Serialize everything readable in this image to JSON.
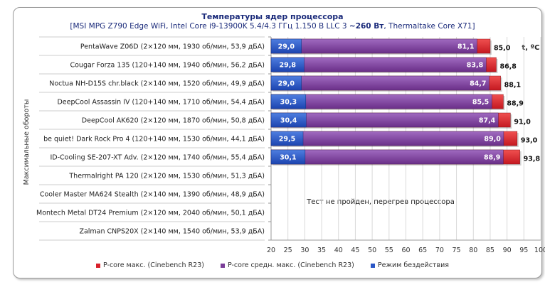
{
  "chart_data": {
    "type": "bar",
    "title": "Температуры ядер процессора",
    "subtitle_parts": [
      "[MSI MPG Z790 Edge WiFi, Intel Core i9-13900K 5.4/4.3 ГГц 1.150 В LLC 3 ",
      "~260 Вт",
      ", Thermaltake Core X71]"
    ],
    "ylabel": "Максимальные обороты",
    "unit_label": "t, ºC",
    "xlim": [
      20,
      100
    ],
    "xticks": [
      "20",
      "25",
      "30",
      "35",
      "40",
      "45",
      "50",
      "55",
      "60",
      "65",
      "70",
      "75",
      "80",
      "85",
      "90",
      "95",
      "100"
    ],
    "categories": [
      "PentaWave Z06D (2×120 мм, 1930 об/мин, 53,9 дБА)",
      "Cougar Forza 135 (120+140 мм, 1940 об/мин, 56,2 дБА)",
      "Noctua NH-D15S chr.black (2×140 мм, 1520 об/мин, 49,9 дБА)",
      "DeepCool Assassin IV (120+140 мм, 1710 об/мин, 54,4 дБА)",
      "DeepCool AK620 (2×120 мм, 1870 об/мин, 50,8 дБА)",
      "be quiet! Dark Rock Pro 4 (120+140 мм, 1530 об/мин, 44,1 дБА)",
      "ID-Cooling SE-207-XT Adv. (2×120 мм, 1740 об/мин, 55,4 дБА)",
      "Thermalright PA 120 (2×120 мм, 1530 об/мин, 51,3 дБА)",
      "Cooler Master MA624 Stealth (2×140 мм, 1390 об/мин, 48,9 дБА)",
      "Montech Metal DT24 Premium (2×120 мм, 2040 об/мин, 50,1 дБА)",
      "Zalman CNPS20X (2×140 мм, 1540 об/мин, 53,9 дБА)"
    ],
    "series": [
      {
        "name": "P-core макс. (Cinebench R23)",
        "color": "#d8202a",
        "values": [
          85.0,
          86.8,
          88.1,
          88.9,
          91.0,
          93.0,
          93.8,
          null,
          null,
          null,
          null
        ],
        "labels": [
          "85,0",
          "86,8",
          "88,1",
          "88,9",
          "91,0",
          "93,0",
          "93,8",
          null,
          null,
          null,
          null
        ]
      },
      {
        "name": "P-core средн. макс. (Cinebench R23)",
        "color": "#7a3d98",
        "values": [
          81.1,
          83.8,
          84.7,
          85.5,
          87.4,
          89.0,
          88.9,
          null,
          null,
          null,
          null
        ],
        "labels": [
          "81,1",
          "83,8",
          "84,7",
          "85,5",
          "87,4",
          "89,0",
          "88,9",
          null,
          null,
          null,
          null
        ]
      },
      {
        "name": "Режим бездействия",
        "color": "#2a56c6",
        "values": [
          29.0,
          29.8,
          29.0,
          30.3,
          30.4,
          29.5,
          30.1,
          null,
          null,
          null,
          null
        ],
        "labels": [
          "29,0",
          "29,8",
          "29,0",
          "30,3",
          "30,4",
          "29,5",
          "30,1",
          null,
          null,
          null,
          null
        ]
      }
    ],
    "annotation": "Тест не пройден, перегрев процессора",
    "legend_position": "bottom",
    "grid": true
  }
}
